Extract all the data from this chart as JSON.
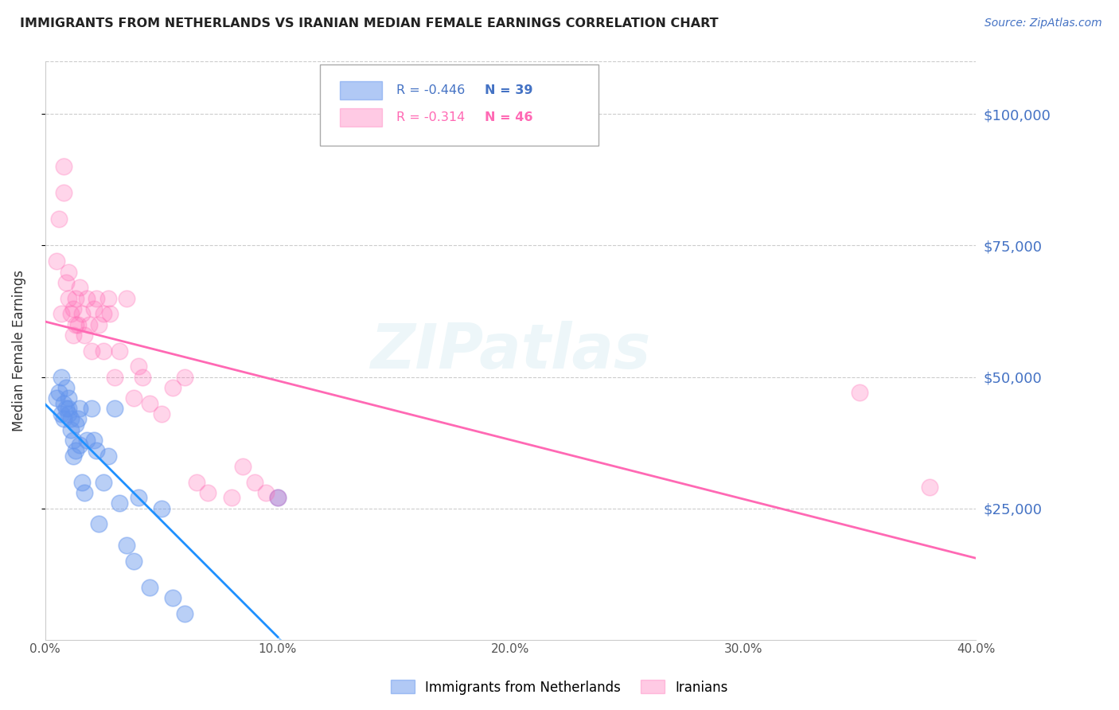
{
  "title": "IMMIGRANTS FROM NETHERLANDS VS IRANIAN MEDIAN FEMALE EARNINGS CORRELATION CHART",
  "source": "Source: ZipAtlas.com",
  "ylabel": "Median Female Earnings",
  "ytick_labels": [
    "$25,000",
    "$50,000",
    "$75,000",
    "$100,000"
  ],
  "ytick_values": [
    25000,
    50000,
    75000,
    100000
  ],
  "ymin": 0,
  "ymax": 110000,
  "xmin": 0.0,
  "xmax": 0.4,
  "legend_r1": "R = -0.446",
  "legend_n1": "N = 39",
  "legend_r2": "R = -0.314",
  "legend_n2": "N = 46",
  "legend_label1": "Immigrants from Netherlands",
  "legend_label2": "Iranians",
  "blue_color": "#6495ED",
  "pink_color": "#FF69B4",
  "blue_line_color": "#1E90FF",
  "pink_line_color": "#FF69B4",
  "watermark": "ZIPatlas",
  "blue_scatter_x": [
    0.005,
    0.006,
    0.007,
    0.007,
    0.008,
    0.008,
    0.009,
    0.009,
    0.01,
    0.01,
    0.01,
    0.011,
    0.011,
    0.012,
    0.012,
    0.013,
    0.013,
    0.014,
    0.015,
    0.015,
    0.016,
    0.017,
    0.018,
    0.02,
    0.021,
    0.022,
    0.023,
    0.025,
    0.027,
    0.03,
    0.032,
    0.035,
    0.038,
    0.04,
    0.045,
    0.05,
    0.055,
    0.06,
    0.1
  ],
  "blue_scatter_y": [
    46000,
    47000,
    43000,
    50000,
    42000,
    45000,
    44000,
    48000,
    46000,
    44000,
    43000,
    40000,
    42000,
    38000,
    35000,
    36000,
    41000,
    42000,
    44000,
    37000,
    30000,
    28000,
    38000,
    44000,
    38000,
    36000,
    22000,
    30000,
    35000,
    44000,
    26000,
    18000,
    15000,
    27000,
    10000,
    25000,
    8000,
    5000,
    27000
  ],
  "pink_scatter_x": [
    0.005,
    0.006,
    0.007,
    0.008,
    0.008,
    0.009,
    0.01,
    0.01,
    0.011,
    0.012,
    0.012,
    0.013,
    0.013,
    0.014,
    0.015,
    0.016,
    0.017,
    0.018,
    0.019,
    0.02,
    0.021,
    0.022,
    0.023,
    0.025,
    0.025,
    0.027,
    0.028,
    0.03,
    0.032,
    0.035,
    0.038,
    0.04,
    0.042,
    0.045,
    0.05,
    0.055,
    0.06,
    0.065,
    0.07,
    0.08,
    0.085,
    0.09,
    0.095,
    0.1,
    0.35,
    0.38
  ],
  "pink_scatter_y": [
    72000,
    80000,
    62000,
    85000,
    90000,
    68000,
    70000,
    65000,
    62000,
    58000,
    63000,
    60000,
    65000,
    60000,
    67000,
    62000,
    58000,
    65000,
    60000,
    55000,
    63000,
    65000,
    60000,
    55000,
    62000,
    65000,
    62000,
    50000,
    55000,
    65000,
    46000,
    52000,
    50000,
    45000,
    43000,
    48000,
    50000,
    30000,
    28000,
    27000,
    33000,
    30000,
    28000,
    27000,
    47000,
    29000
  ]
}
